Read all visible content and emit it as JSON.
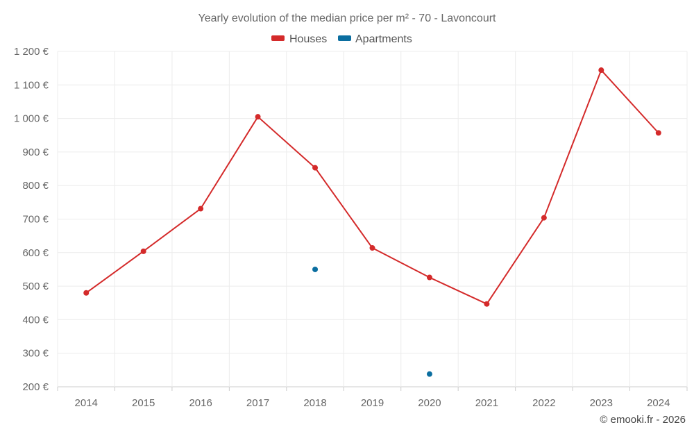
{
  "chart_data": {
    "type": "line",
    "title": "Yearly evolution of the median price per m² - 70 - Lavoncourt",
    "categories": [
      "2014",
      "2015",
      "2016",
      "2017",
      "2018",
      "2019",
      "2020",
      "2021",
      "2022",
      "2023",
      "2024"
    ],
    "series": [
      {
        "name": "Houses",
        "color": "#d42a2a",
        "values": [
          480,
          604,
          731,
          1005,
          853,
          614,
          526,
          447,
          704,
          1144,
          957
        ]
      },
      {
        "name": "Apartments",
        "color": "#0b6ea0",
        "values": [
          null,
          null,
          null,
          null,
          550,
          null,
          238,
          null,
          null,
          null,
          null
        ]
      }
    ],
    "ylim": [
      200,
      1200
    ],
    "yticks": [
      200,
      300,
      400,
      500,
      600,
      700,
      800,
      900,
      1000,
      1100,
      1200
    ],
    "y_tick_labels": [
      "200 €",
      "300 €",
      "400 €",
      "500 €",
      "600 €",
      "700 €",
      "800 €",
      "900 €",
      "1 000 €",
      "1 100 €",
      "1 200 €"
    ],
    "legend_position": "top-center",
    "grid": true
  },
  "credit": "© emooki.fr - 2026"
}
